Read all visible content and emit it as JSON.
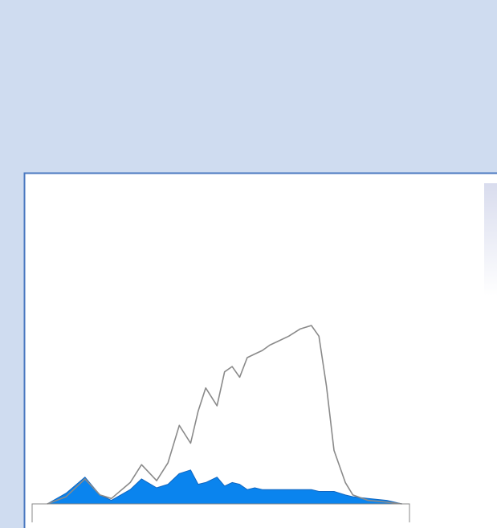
{
  "chart_data": {
    "type": "area",
    "x": [
      4,
      9,
      14,
      18,
      21,
      26,
      29,
      33,
      36,
      39,
      42,
      44,
      46,
      49,
      51,
      53,
      55,
      57,
      59,
      61,
      63,
      65,
      68,
      71,
      74,
      76,
      78,
      80,
      83,
      85,
      89,
      94,
      98
    ],
    "series": [
      {
        "color": "#0a84ee",
        "fill": true,
        "values": [
          0,
          6,
          15,
          5,
          2,
          8,
          14,
          9,
          11,
          17,
          19,
          11,
          12,
          15,
          10,
          12,
          11,
          8,
          9,
          8,
          8,
          8,
          8,
          8,
          8,
          7,
          7,
          7,
          5,
          4,
          3,
          2,
          0
        ]
      },
      {
        "color": "#8a8a8a",
        "fill": false,
        "values": [
          0,
          4,
          14,
          5,
          3,
          12,
          22,
          13,
          23,
          44,
          34,
          52,
          65,
          55,
          74,
          77,
          71,
          82,
          84,
          86,
          89,
          91,
          94,
          98,
          100,
          94,
          66,
          30,
          12,
          5,
          2,
          1,
          0
        ]
      }
    ],
    "xlim": [
      0,
      100
    ],
    "ylim": [
      0,
      100
    ]
  }
}
